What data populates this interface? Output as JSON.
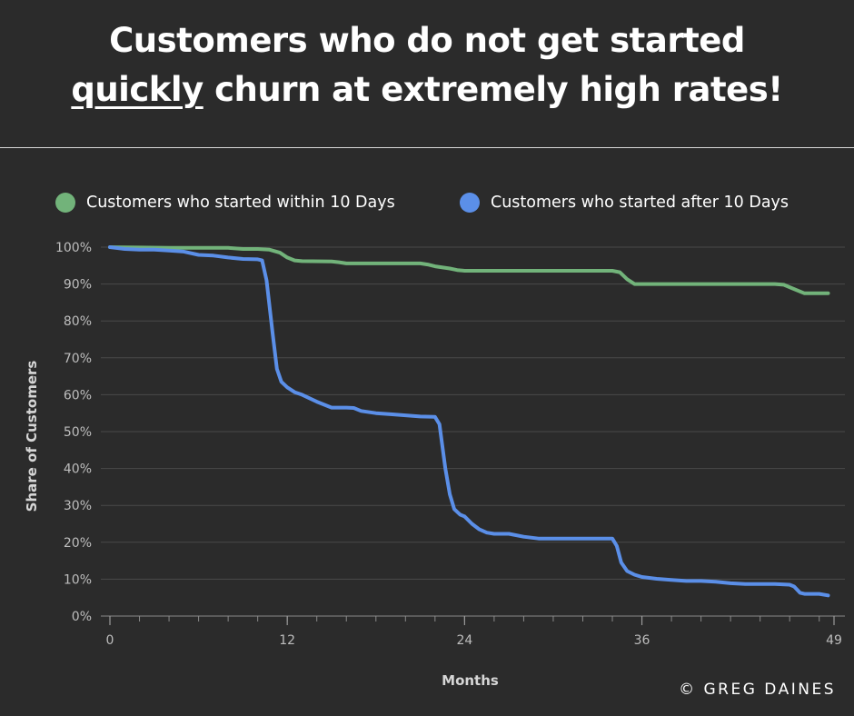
{
  "header": {
    "title_line1": "Customers who do not get started",
    "title_line2_underlined": "quickly",
    "title_line2_rest": " churn at extremely high rates!"
  },
  "legend": {
    "items": [
      {
        "label": "Customers who started within 10 Days",
        "color": "#72b37a"
      },
      {
        "label": "Customers who started after 10 Days",
        "color": "#5b8fe8"
      }
    ]
  },
  "footer": {
    "copyright": "© GREG DAINES"
  },
  "chart_data": {
    "type": "line",
    "title": "",
    "xlabel": "Months",
    "ylabel": "Share of Customers",
    "xlim": [
      0,
      49
    ],
    "ylim": [
      0,
      100
    ],
    "x_ticks": [
      0,
      12,
      24,
      36,
      49
    ],
    "y_ticks": [
      0,
      10,
      20,
      30,
      40,
      50,
      60,
      70,
      80,
      90,
      100
    ],
    "y_tick_suffix": "%",
    "grid": true,
    "legend_position": "top",
    "series": [
      {
        "name": "Customers who started within 10 Days",
        "color": "#72b37a",
        "x": [
          0,
          2,
          4,
          6,
          8,
          9,
          10,
          10.8,
          11.5,
          12,
          12.5,
          13,
          15,
          15.5,
          16,
          21,
          21.5,
          22,
          23,
          23.5,
          24,
          30,
          34,
          34.5,
          35,
          35.5,
          40,
          45,
          45.6,
          46.2,
          47,
          48,
          48.6
        ],
        "y": [
          100,
          99.9,
          99.8,
          99.8,
          99.8,
          99.5,
          99.5,
          99.3,
          98.5,
          97.2,
          96.4,
          96.2,
          96.1,
          95.9,
          95.6,
          95.6,
          95.3,
          94.8,
          94.2,
          93.8,
          93.6,
          93.6,
          93.6,
          93.2,
          91.3,
          90,
          90,
          90,
          89.8,
          88.8,
          87.5,
          87.5,
          87.5
        ]
      },
      {
        "name": "Customers who started after 10 Days",
        "color": "#5b8fe8",
        "x": [
          0,
          1,
          2,
          3,
          4,
          5,
          6,
          7,
          8,
          9,
          10,
          10.3,
          10.6,
          11,
          11.3,
          11.6,
          12,
          12.5,
          13,
          14,
          15,
          16,
          16.5,
          17,
          18,
          19,
          20,
          21,
          22,
          22.3,
          22.7,
          23,
          23.3,
          23.7,
          24,
          24.5,
          25,
          25.5,
          26,
          27,
          28,
          29,
          30,
          33,
          34,
          34.3,
          34.6,
          35,
          35.5,
          36,
          37,
          38,
          39,
          40,
          41,
          42,
          43,
          44,
          45,
          46,
          46.3,
          46.7,
          47,
          48,
          48.6
        ],
        "y": [
          100,
          99.5,
          99.3,
          99.3,
          99.1,
          98.8,
          97.9,
          97.7,
          97.2,
          96.8,
          96.7,
          96.4,
          91,
          77,
          67,
          63.5,
          62,
          60.7,
          60,
          58.1,
          56.5,
          56.5,
          56.4,
          55.6,
          55,
          54.7,
          54.4,
          54.1,
          54,
          52,
          40,
          33,
          29,
          27.5,
          27,
          25,
          23.5,
          22.6,
          22.3,
          22.3,
          21.5,
          21,
          21,
          21,
          21,
          19,
          14.5,
          12.2,
          11.2,
          10.6,
          10.1,
          9.8,
          9.5,
          9.5,
          9.3,
          8.9,
          8.7,
          8.7,
          8.7,
          8.5,
          8,
          6.3,
          6,
          6,
          5.6
        ]
      }
    ]
  }
}
